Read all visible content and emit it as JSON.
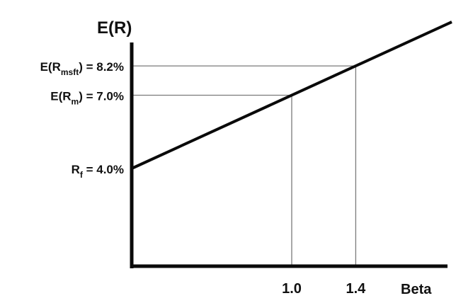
{
  "chart_data": {
    "type": "line",
    "title": "",
    "ylabel": "E(R)",
    "xlabel": "Beta",
    "xlim": [
      0,
      2.0
    ],
    "ylim": [
      0,
      10.2
    ],
    "series": [
      {
        "x": [
          0,
          2.0
        ],
        "y": [
          4.0,
          10.0
        ]
      }
    ],
    "x_ticks": [
      {
        "value": 1.0,
        "label": "1.0"
      },
      {
        "value": 1.4,
        "label": "1.4"
      }
    ],
    "y_ticks": [
      {
        "value": 8.2,
        "base": "E(R",
        "sub": "msft",
        "tail": ") = 8.2%"
      },
      {
        "value": 7.0,
        "base": "E(R",
        "sub": "m",
        "tail": ") = 7.0%"
      },
      {
        "value": 4.0,
        "base": "R",
        "sub": "f",
        "tail": "   = 4.0%"
      }
    ],
    "reference_points": [
      {
        "x": 1.0,
        "y": 7.0
      },
      {
        "x": 1.4,
        "y": 8.2
      }
    ],
    "grid": false,
    "legend": "none",
    "colors": {
      "line": "#0a0a0a",
      "axis": "#0a0a0a",
      "guide": "#7a7a7a"
    }
  }
}
